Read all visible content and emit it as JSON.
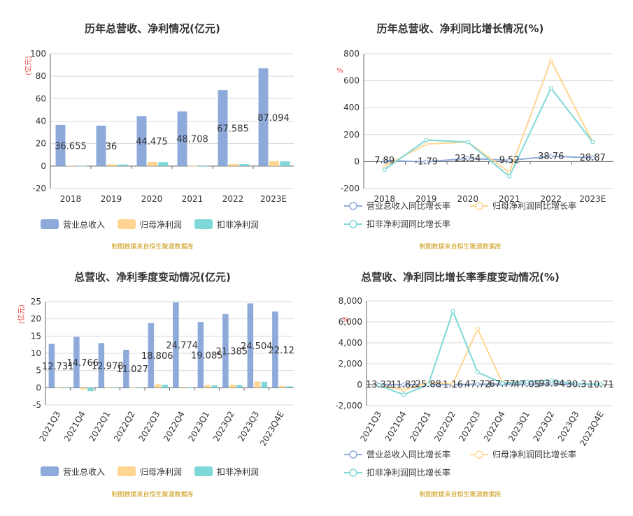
{
  "colors": {
    "revenue": "#8eaadb",
    "parent_profit": "#ffd591",
    "deducted_profit": "#7fd8d8",
    "revenue_line": "#8eaadb",
    "parent_line": "#ffd591",
    "deducted_line": "#7fd8d8",
    "grid": "#d9d9d9",
    "source": "#c8960a"
  },
  "source_note": "制图数据来自恒生聚源数据库",
  "unit_label": "(亿元)",
  "percent_label": "%",
  "legend_bar": [
    "营业总收入",
    "归母净利润",
    "扣非净利润"
  ],
  "legend_line": [
    "营业总收入同比增长率",
    "归母净利润同比增长率",
    "扣非净利润同比增长率"
  ],
  "chart_data": [
    {
      "type": "bar",
      "title": "历年总营收、净利情况(亿元)",
      "categories": [
        "2018",
        "2019",
        "2020",
        "2021",
        "2022",
        "2023E"
      ],
      "ylim": [
        -20,
        100
      ],
      "yticks": [
        -20,
        0,
        20,
        40,
        60,
        80,
        100
      ],
      "series": [
        {
          "name": "营业总收入",
          "values": [
            36.655,
            36,
            44.475,
            48.708,
            67.585,
            87.094
          ],
          "labels": [
            "36.655",
            "36",
            "44.475",
            "48.708",
            "67.585",
            "87.094"
          ]
        },
        {
          "name": "归母净利润",
          "values": [
            0.3,
            1.5,
            3.7,
            0.1,
            1.8,
            4.5
          ]
        },
        {
          "name": "扣非净利润",
          "values": [
            0.2,
            1.4,
            3.5,
            -0.2,
            1.7,
            4.2
          ]
        }
      ],
      "grid": true,
      "legend": "bottom"
    },
    {
      "type": "line",
      "title": "历年总营收、净利同比增长情况(%)",
      "categories": [
        "2018",
        "2019",
        "2020",
        "2021",
        "2022",
        "2023E"
      ],
      "ylim": [
        -200,
        800
      ],
      "yticks": [
        -200,
        0,
        200,
        400,
        600,
        800
      ],
      "series": [
        {
          "name": "营业总收入同比增长率",
          "values": [
            7.89,
            -1.79,
            23.54,
            9.52,
            38.76,
            28.87
          ],
          "labels": [
            "7.89",
            "-1.79",
            "23.54",
            "9.52",
            "38.76",
            "28.87"
          ]
        },
        {
          "name": "归母净利润同比增长率",
          "values": [
            -35,
            130,
            145,
            -80,
            750,
            145
          ]
        },
        {
          "name": "扣非净利润同比增长率",
          "values": [
            -60,
            160,
            145,
            -110,
            545,
            145
          ]
        }
      ],
      "grid": true,
      "legend": "bottom"
    },
    {
      "type": "bar",
      "title": "总营收、净利季度变动情况(亿元)",
      "categories": [
        "2021Q3",
        "2021Q4",
        "2022Q1",
        "2022Q2",
        "2022Q3",
        "2022Q4",
        "2023Q1",
        "2023Q2",
        "2023Q3",
        "2023Q4E"
      ],
      "ylim": [
        -5,
        25
      ],
      "yticks": [
        -5,
        0,
        5,
        10,
        15,
        20,
        25
      ],
      "series": [
        {
          "name": "营业总收入",
          "values": [
            12.731,
            14.766,
            12.978,
            11.027,
            18.806,
            24.774,
            19.085,
            21.385,
            24.504,
            22.12
          ],
          "labels": [
            "12.731",
            "14.766",
            "12.978",
            "11.027",
            "18.806",
            "24.774",
            "19.085",
            "21.385",
            "24.504",
            "22.12"
          ]
        },
        {
          "name": "归母净利润",
          "values": [
            0.1,
            -0.5,
            0.1,
            0.05,
            1.0,
            0.2,
            0.8,
            0.9,
            1.8,
            0.5
          ]
        },
        {
          "name": "扣非净利润",
          "values": [
            0.05,
            -1.0,
            0.05,
            0.02,
            0.9,
            0.1,
            0.7,
            0.8,
            1.7,
            0.4
          ]
        }
      ],
      "grid": true,
      "legend": "bottom"
    },
    {
      "type": "line",
      "title": "总营收、净利同比增长率季度变动情况(%)",
      "categories": [
        "2021Q3",
        "2021Q4",
        "2022Q1",
        "2022Q2",
        "2022Q3",
        "2022Q4",
        "2023Q1",
        "2023Q2",
        "2023Q3",
        "2023Q4E"
      ],
      "ylim": [
        -2000,
        8000
      ],
      "yticks": [
        -2000,
        0,
        2000,
        4000,
        6000,
        8000
      ],
      "ytick_labels": [
        "-2,000",
        "0",
        "2,000",
        "4,000",
        "6,000",
        "8,000"
      ],
      "series": [
        {
          "name": "营业总收入同比增长率",
          "values": [
            13.32,
            11.82,
            25.88,
            1.16,
            47.72,
            67.77,
            47.05,
            93.94,
            30.3,
            10.71
          ],
          "labels": [
            "13.32",
            "11.82",
            "25.88",
            "1.16",
            "47.72",
            "67.77",
            "47.05",
            "93.94",
            "30.3",
            "10.71"
          ]
        },
        {
          "name": "归母净利润同比增长率",
          "values": [
            -50,
            -500,
            200,
            100,
            5300,
            200,
            300,
            400,
            100,
            50
          ]
        },
        {
          "name": "扣非净利润同比增长率",
          "values": [
            -50,
            -950,
            0,
            7000,
            1200,
            150,
            300,
            400,
            100,
            50
          ]
        }
      ],
      "grid": true,
      "legend": "bottom"
    }
  ]
}
